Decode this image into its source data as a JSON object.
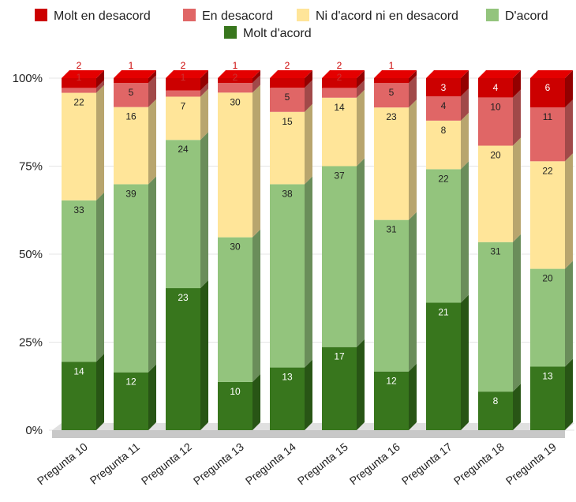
{
  "chart_data": {
    "type": "bar",
    "stacked": true,
    "percent": true,
    "categories": [
      "Pregunta 10",
      "Pregunta 11",
      "Pregunta 12",
      "Pregunta 13",
      "Pregunta 14",
      "Pregunta 15",
      "Pregunta 16",
      "Pregunta 17",
      "Pregunta 18",
      "Pregunta 19"
    ],
    "series": [
      {
        "name": "Molt d'acord",
        "color": "#38761d",
        "values": [
          14,
          12,
          23,
          10,
          13,
          17,
          12,
          21,
          8,
          13
        ]
      },
      {
        "name": "D'acord",
        "color": "#93c47d",
        "values": [
          33,
          39,
          24,
          30,
          38,
          37,
          31,
          22,
          31,
          20
        ]
      },
      {
        "name": "Ni d'acord ni en desacord",
        "color": "#ffe599",
        "values": [
          22,
          16,
          7,
          30,
          15,
          14,
          23,
          8,
          20,
          22
        ]
      },
      {
        "name": "En desacord",
        "color": "#e06666",
        "values": [
          1,
          5,
          1,
          2,
          5,
          2,
          5,
          4,
          10,
          11
        ]
      },
      {
        "name": "Molt en desacord",
        "color": "#cc0000",
        "values": [
          2,
          1,
          2,
          1,
          2,
          2,
          1,
          3,
          4,
          6
        ]
      }
    ],
    "yticks": [
      "0%",
      "25%",
      "50%",
      "75%",
      "100%"
    ],
    "ylim": [
      0,
      100
    ],
    "legend_position": "top",
    "grid": true,
    "title": "",
    "xlabel": "",
    "ylabel": ""
  }
}
